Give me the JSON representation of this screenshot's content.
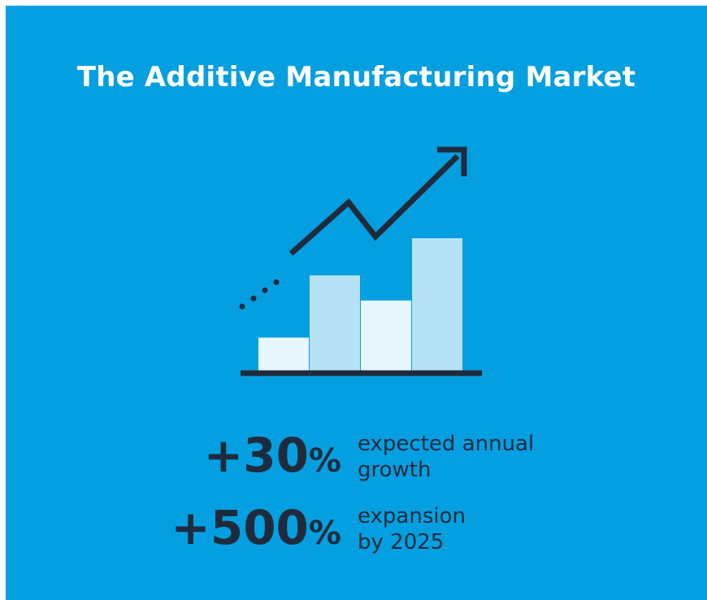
{
  "colors": {
    "background": "#049fe0",
    "title": "#ffffff",
    "dark": "#1f2b3d",
    "bar_light": "#e8f6fd",
    "bar_medium": "#b6e2f6"
  },
  "title": "The Additive Manufacturing Market",
  "illustration": {
    "icon": "growth-chart-icon",
    "bars": [
      {
        "level": 0.25,
        "color": "#e8f6fd"
      },
      {
        "level": 0.72,
        "color": "#b6e2f6"
      },
      {
        "level": 0.53,
        "color": "#e8f6fd"
      },
      {
        "level": 1.0,
        "color": "#b6e2f6"
      }
    ]
  },
  "stats": [
    {
      "value": "+30",
      "unit": "%",
      "line1": "expected annual",
      "line2": "growth"
    },
    {
      "value": "+500",
      "unit": "%",
      "line1": "expansion",
      "line2": "by 2025"
    }
  ]
}
